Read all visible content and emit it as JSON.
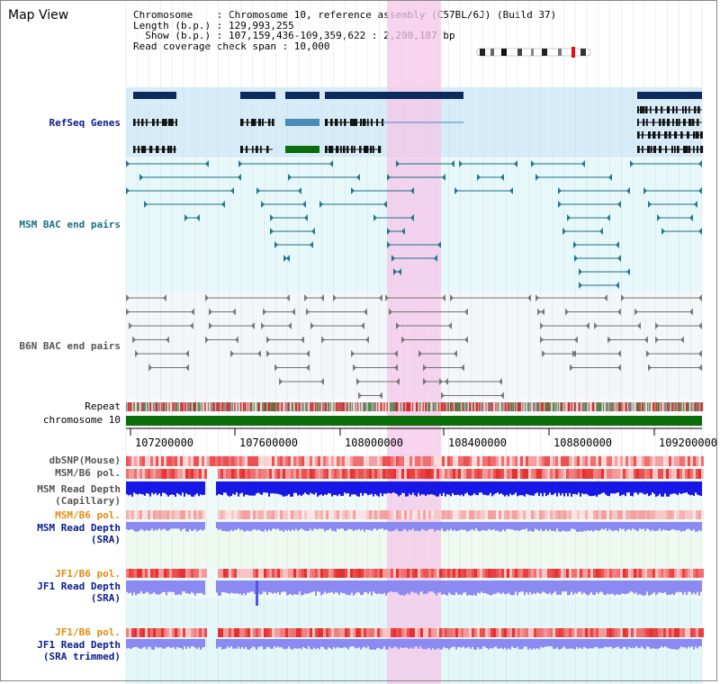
{
  "header": {
    "title": "Map View",
    "info_lines": [
      "Chromosome    : Chromosome 10, reference assembly (C57BL/6J) (Build 37)",
      "Length (b.p.) : 129,993,255",
      "  Show (b.p.) : 107,159,436-109,359,622 : 2,200,187 bp",
      "Read coverage check span : 10,000"
    ]
  },
  "tracks": {
    "refseq": "RefSeq Genes",
    "msm_bac": "MSM BAC end pairs",
    "b6n_bac": "B6N BAC end pairs",
    "repeat": "Repeat",
    "chromosome": "chromosome 10",
    "dbsnp": "dbSNP(Mouse)",
    "msm_b6_pol": "MSM/B6 pol.",
    "msm_depth_cap_1": "MSM Read Depth",
    "msm_depth_cap_2": "(Capillary)",
    "msm_b6_pol_2": "MSM/B6 pol.",
    "msm_depth_sra_1": "MSM Read Depth",
    "msm_depth_sra_2": "(SRA)",
    "jf1_b6_pol": "JF1/B6 pol.",
    "jf1_depth_sra_1": "JF1 Read Depth",
    "jf1_depth_sra_2": "(SRA)",
    "jf1_b6_pol_2": "JF1/B6 pol.",
    "jf1_depth_trim_1": "JF1 Read Depth",
    "jf1_depth_trim_2": "(SRA trimmed)"
  },
  "axis": {
    "ticks": [
      "107200000",
      "107600000",
      "108000000",
      "108400000",
      "108800000",
      "109200000"
    ]
  },
  "colors": {
    "refseq_bg": "#d6ecf8",
    "bac_bg": "#e6f8fa",
    "b6n_bg": "#f3f7f9",
    "highlight": "#f5c6ea",
    "navy": "#0a1c8c",
    "gene_dark": "#0c2a5c",
    "gene_blue": "#4a8ab6",
    "gene_green": "#0a6e0a",
    "msm_pair": "#1a6e86",
    "b6n_pair": "#707070",
    "chrom_green": "#0b6e0b",
    "depth_blue": "#1818e6",
    "depth_light": "#8a8af2",
    "pol_red": "#e84040",
    "orange": "#e38a10"
  }
}
